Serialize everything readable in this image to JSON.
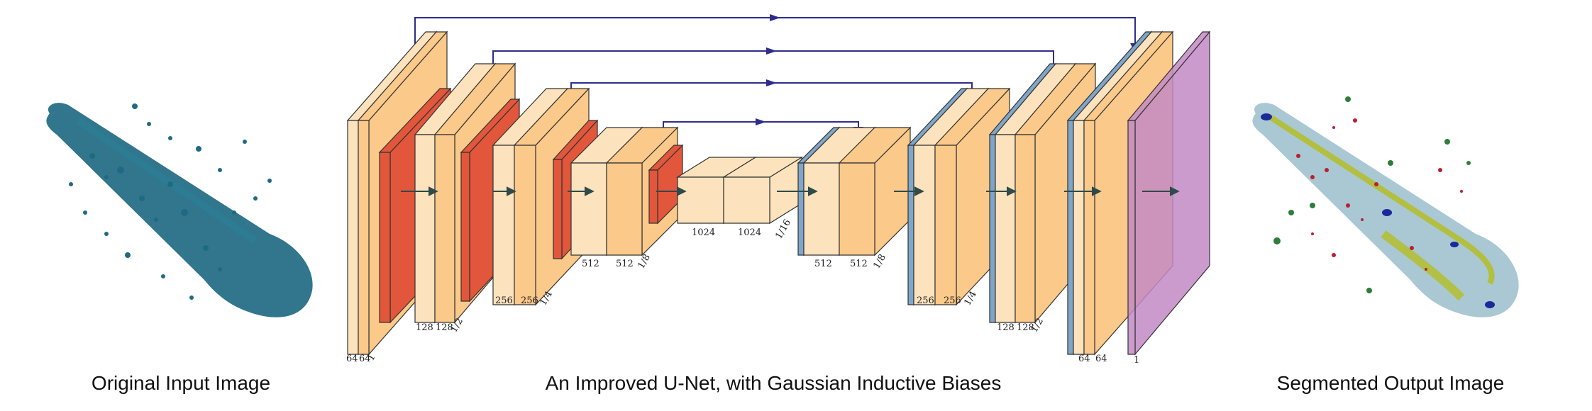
{
  "captions": {
    "input": "Original Input Image",
    "network": "An Improved U-Net, with Gaussian Inductive Biases",
    "output": "Segmented Output Image"
  },
  "colors": {
    "conv_light": "#fde3bd",
    "conv_mid": "#fbc989",
    "pool": "#e2563b",
    "upsample": "#7fa6c9",
    "softmax": "#c389c4",
    "skip_arrow": "#2e2d8c",
    "flow_arrow": "#2f4a4a",
    "input_volume": "#1f6a82",
    "seg_light": "#a9c8d4",
    "seg_yellow": "#b4be2e",
    "seg_red": "#b9202f",
    "seg_green": "#2f7d3b",
    "seg_blue": "#1a2a9a"
  },
  "icons": [
    "input-volume-icon",
    "segmented-volume-icon"
  ],
  "labels": {
    "enc1": [
      "64",
      "64",
      "1"
    ],
    "enc2": [
      "128",
      "128",
      "1/2"
    ],
    "enc3": [
      "256",
      "256",
      "1/4"
    ],
    "enc4": [
      "512",
      "512",
      "1/8"
    ],
    "bottleneck": [
      "1024",
      "1024",
      "1/16"
    ],
    "dec4": [
      "512",
      "512",
      "1/8"
    ],
    "dec3": [
      "256",
      "256",
      "1/4"
    ],
    "dec2": [
      "128",
      "128",
      "1/2"
    ],
    "dec1": [
      "64",
      "64"
    ],
    "output": [
      "1"
    ]
  }
}
